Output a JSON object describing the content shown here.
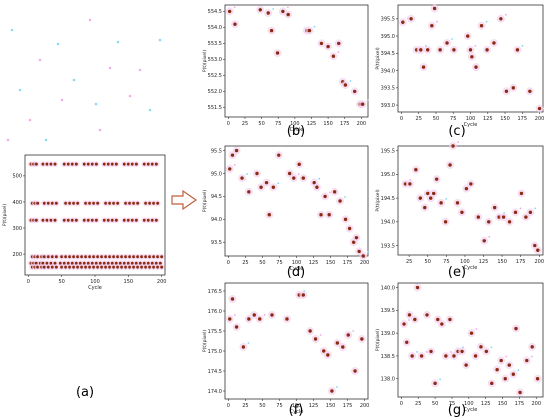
{
  "figure_labels": [
    "(a)",
    "(b)",
    "(c)",
    "(d)",
    "(e)",
    "(f)",
    "(g)"
  ],
  "colors": {
    "point": "#8b2a12",
    "halo": "#f3d2ee",
    "speck_cyan": "#7fd8f0",
    "speck_pink": "#f0a6e6",
    "arrow": "#c0603a",
    "axis": "#333333"
  },
  "chart_data": [
    {
      "id": "a",
      "type": "scatter",
      "xlabel": "Cycle",
      "ylabel": "P(t)(pixel)",
      "xlim": [
        -5,
        205
      ],
      "ylim": [
        120,
        580
      ],
      "xticks": [
        0,
        50,
        100,
        150,
        200
      ],
      "yticks": [
        200,
        300,
        400,
        500
      ],
      "bands": [
        545,
        395,
        330,
        190,
        165,
        150
      ],
      "x": [
        4,
        8,
        12,
        18,
        22,
        28,
        34,
        40,
        48,
        54,
        60,
        66,
        72,
        78,
        84,
        90,
        96,
        102,
        108,
        114,
        120,
        126,
        132,
        138,
        144,
        150,
        156,
        162,
        168,
        174,
        180,
        186,
        192,
        198
      ],
      "note": "dense bands of points at the listed y levels"
    },
    {
      "id": "b",
      "type": "scatter",
      "xlabel": "Cycle",
      "ylabel": "P(t)(pixel)",
      "xlim": [
        -5,
        210
      ],
      "ylim": [
        551.2,
        554.7
      ],
      "xticks": [
        0,
        25,
        50,
        75,
        100,
        125,
        150,
        175,
        200
      ],
      "yticks": [
        551.5,
        552.0,
        552.5,
        553.0,
        553.5,
        554.0,
        554.5
      ],
      "x": [
        2,
        10,
        48,
        60,
        65,
        74,
        82,
        90,
        118,
        122,
        140,
        150,
        158,
        166,
        172,
        176,
        190,
        198,
        202
      ],
      "y": [
        554.5,
        554.1,
        554.55,
        554.45,
        553.9,
        553.2,
        554.5,
        554.4,
        553.9,
        553.9,
        553.5,
        553.4,
        553.1,
        553.5,
        552.3,
        552.2,
        552.0,
        551.6,
        551.6
      ]
    },
    {
      "id": "c",
      "type": "scatter",
      "xlabel": "Cycle",
      "ylabel": "P(t)(pixel)",
      "xlim": [
        -5,
        205
      ],
      "ylim": [
        392.8,
        395.9
      ],
      "xticks": [
        0,
        25,
        50,
        75,
        100,
        125,
        150,
        175,
        200
      ],
      "yticks": [
        393.0,
        393.5,
        394.0,
        394.5,
        395.0,
        395.5
      ],
      "x": [
        2,
        14,
        22,
        28,
        32,
        38,
        44,
        48,
        56,
        66,
        76,
        96,
        100,
        102,
        108,
        116,
        124,
        134,
        144,
        152,
        162,
        168,
        186,
        200
      ],
      "y": [
        395.4,
        395.5,
        394.6,
        394.6,
        394.1,
        394.6,
        395.3,
        395.8,
        394.6,
        394.8,
        394.6,
        395.0,
        394.6,
        394.4,
        394.1,
        395.3,
        394.6,
        394.8,
        395.5,
        393.4,
        393.5,
        394.6,
        393.4,
        392.9
      ]
    },
    {
      "id": "d",
      "type": "scatter",
      "xlabel": "Cycle",
      "ylabel": "P(t)(pixel)",
      "xlim": [
        -5,
        205
      ],
      "ylim": [
        93.2,
        95.6
      ],
      "xticks": [
        0,
        25,
        50,
        75,
        100,
        125,
        150,
        175,
        200
      ],
      "yticks": [
        93.5,
        94.0,
        94.5,
        95.0,
        95.5
      ],
      "x": [
        2,
        6,
        12,
        20,
        30,
        42,
        48,
        56,
        60,
        66,
        74,
        90,
        96,
        104,
        110,
        126,
        130,
        136,
        142,
        148,
        156,
        164,
        172,
        178,
        184,
        188,
        192,
        198
      ],
      "y": [
        95.1,
        95.4,
        95.5,
        94.9,
        94.6,
        95.0,
        94.7,
        94.8,
        94.1,
        94.7,
        95.4,
        95.0,
        94.9,
        95.2,
        94.9,
        94.8,
        94.7,
        94.1,
        94.5,
        94.1,
        94.6,
        94.4,
        94.0,
        93.8,
        93.5,
        93.6,
        93.3,
        93.2
      ]
    },
    {
      "id": "e",
      "type": "scatter",
      "xlabel": "Cycle",
      "ylabel": "P(t)(pixel)",
      "xlim": [
        10,
        205
      ],
      "ylim": [
        193.3,
        195.6
      ],
      "xticks": [
        25,
        50,
        75,
        100,
        125,
        150,
        175,
        200
      ],
      "yticks": [
        193.5,
        194.0,
        194.5,
        195.0,
        195.5
      ],
      "x": [
        20,
        26,
        34,
        40,
        46,
        50,
        54,
        58,
        62,
        68,
        74,
        80,
        84,
        90,
        96,
        102,
        108,
        118,
        126,
        132,
        140,
        146,
        152,
        160,
        168,
        176,
        182,
        188,
        194,
        198
      ],
      "y": [
        194.8,
        194.8,
        195.1,
        194.5,
        194.3,
        194.6,
        194.5,
        194.6,
        194.9,
        194.4,
        194.0,
        195.2,
        195.6,
        194.4,
        194.2,
        194.7,
        194.8,
        194.1,
        193.6,
        194.0,
        194.3,
        194.1,
        194.1,
        194.0,
        194.2,
        194.6,
        194.1,
        194.2,
        193.5,
        193.4
      ]
    },
    {
      "id": "f",
      "type": "scatter",
      "xlabel": "Cycle",
      "ylabel": "P(t)(pixel)",
      "xlim": [
        -5,
        205
      ],
      "ylim": [
        173.8,
        176.7
      ],
      "xticks": [
        0,
        25,
        50,
        75,
        100,
        125,
        150,
        175,
        200
      ],
      "yticks": [
        174.0,
        174.5,
        175.0,
        175.5,
        176.0,
        176.5
      ],
      "x": [
        2,
        6,
        12,
        22,
        30,
        38,
        46,
        64,
        86,
        104,
        110,
        120,
        128,
        140,
        146,
        152,
        160,
        168,
        176,
        186,
        196
      ],
      "y": [
        175.8,
        176.3,
        175.6,
        175.1,
        175.8,
        175.9,
        175.8,
        175.9,
        175.8,
        176.4,
        176.4,
        175.5,
        175.3,
        175.0,
        174.9,
        174.0,
        175.2,
        175.1,
        175.4,
        174.5,
        175.3
      ]
    },
    {
      "id": "g",
      "type": "scatter",
      "xlabel": "Cycle",
      "ylabel": "P(t)(pixel)",
      "xlim": [
        -5,
        210
      ],
      "ylim": [
        137.6,
        140.1
      ],
      "xticks": [
        0,
        25,
        50,
        75,
        100,
        125,
        150,
        175,
        200
      ],
      "yticks": [
        138.0,
        138.5,
        139.0,
        139.5,
        140.0
      ],
      "x": [
        4,
        8,
        12,
        16,
        20,
        24,
        30,
        38,
        44,
        50,
        54,
        60,
        66,
        72,
        78,
        84,
        90,
        96,
        104,
        110,
        118,
        126,
        134,
        142,
        148,
        154,
        160,
        166,
        170,
        176,
        186,
        194,
        202
      ],
      "y": [
        139.2,
        138.8,
        139.4,
        138.5,
        139.3,
        140.0,
        138.5,
        139.4,
        138.6,
        137.9,
        139.3,
        139.2,
        138.5,
        139.3,
        138.5,
        138.6,
        138.6,
        138.3,
        139.0,
        138.5,
        138.7,
        138.6,
        137.9,
        138.2,
        138.4,
        138.0,
        138.3,
        138.1,
        139.1,
        137.7,
        138.4,
        138.7,
        138.0
      ]
    }
  ]
}
